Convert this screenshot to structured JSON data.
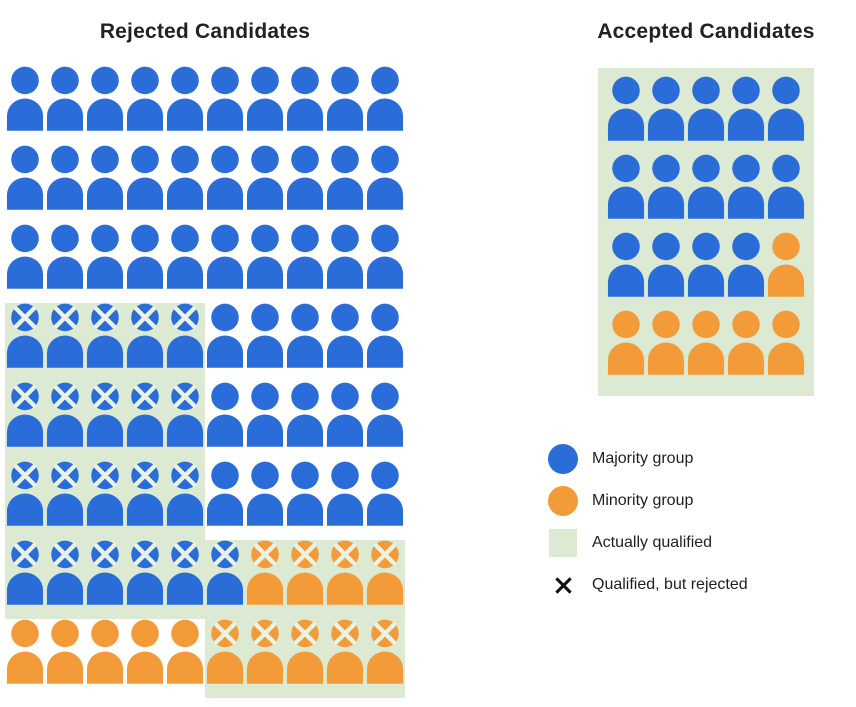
{
  "colors": {
    "majority": "#2a6cd8",
    "minority": "#f29b38",
    "qualified_bg": "#dcead3",
    "icon_x": "#e9f2e4",
    "legend_x": "#111111",
    "title_text": "#202124"
  },
  "chart_data": {
    "type": "pictogram",
    "legend": [
      {
        "icon": "majority-circle-icon",
        "label": "Majority group",
        "color_key": "majority"
      },
      {
        "icon": "minority-circle-icon",
        "label": "Minority group",
        "color_key": "minority"
      },
      {
        "icon": "qualified-square-icon",
        "label": "Actually qualified",
        "color_key": "qualified_bg"
      },
      {
        "icon": "x-icon",
        "label": "Qualified, but rejected",
        "color_key": "legend_x"
      }
    ],
    "cell_codes": {
      "b": {
        "group": "majority",
        "crossed": false,
        "qualified": false
      },
      "o": {
        "group": "minority",
        "crossed": false,
        "qualified": false
      },
      "B": {
        "group": "majority",
        "crossed": true,
        "qualified": true
      },
      "O": {
        "group": "minority",
        "crossed": true,
        "qualified": true
      }
    },
    "panels": [
      {
        "id": "rejected",
        "title": "Rejected Candidates",
        "columns": 10,
        "rows": [
          "bbbbbbbbbb",
          "bbbbbbbbbb",
          "bbbbbbbbbb",
          "BBBBBbbbbb",
          "BBBBBbbbbb",
          "BBBBBbbbbb",
          "BBBBBBOOOO",
          "oooooOOOOO"
        ],
        "totals": {
          "total": 80,
          "majority": 66,
          "minority": 14,
          "majority_qualified_rejected": 21,
          "minority_qualified_rejected": 9,
          "majority_unqualified": 45,
          "minority_unqualified": 5
        }
      },
      {
        "id": "accepted",
        "title": "Accepted Candidates",
        "columns": 5,
        "all_qualified": true,
        "rows": [
          "bbbbb",
          "bbbbb",
          "bbbbo",
          "ooooo"
        ],
        "totals": {
          "total": 20,
          "majority": 14,
          "minority": 6
        }
      }
    ]
  }
}
